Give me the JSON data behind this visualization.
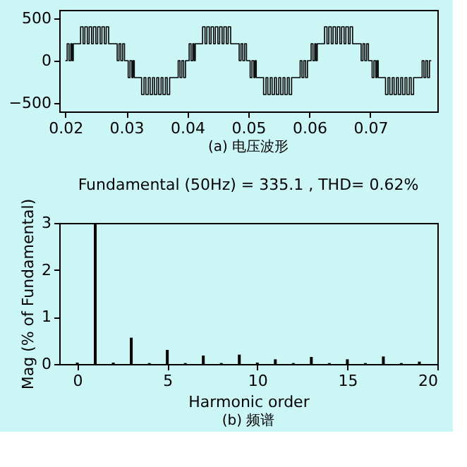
{
  "chart_data": [
    {
      "type": "step",
      "xlim": [
        0.019,
        0.081
      ],
      "xticks": [
        0.02,
        0.03,
        0.04,
        0.05,
        0.06,
        0.07
      ],
      "ylim": [
        -600,
        600
      ],
      "yticks": [
        -500,
        0,
        500
      ],
      "grid": false,
      "annotations": [
        "(a) 电压波形"
      ],
      "series": [
        {
          "color": "#000000",
          "x": [
            0.02,
            0.0203,
            0.0206,
            0.0209,
            0.0211,
            0.0213,
            0.0225,
            0.0229,
            0.0232,
            0.0236,
            0.0239,
            0.0243,
            0.0246,
            0.025,
            0.0253,
            0.0257,
            0.026,
            0.0264,
            0.0267,
            0.0271,
            0.0285,
            0.0288,
            0.0291,
            0.0294,
            0.0297,
            0.03,
            0.0303,
            0.0306,
            0.0309,
            0.0311,
            0.0313,
            0.0325,
            0.0329,
            0.0332,
            0.0336,
            0.0339,
            0.0343,
            0.0346,
            0.035,
            0.0353,
            0.0357,
            0.036,
            0.0364,
            0.0367,
            0.0371,
            0.0385,
            0.0388,
            0.0391,
            0.0394,
            0.0397,
            0.04,
            0.0403,
            0.0406,
            0.0409,
            0.0411,
            0.0413,
            0.0425,
            0.0429,
            0.0432,
            0.0436,
            0.0439,
            0.0443,
            0.0446,
            0.045,
            0.0453,
            0.0457,
            0.046,
            0.0464,
            0.0467,
            0.0471,
            0.0485,
            0.0488,
            0.0491,
            0.0494,
            0.0497,
            0.05,
            0.0503,
            0.0506,
            0.0509,
            0.0511,
            0.0513,
            0.0525,
            0.0529,
            0.0532,
            0.0536,
            0.0539,
            0.0543,
            0.0546,
            0.055,
            0.0553,
            0.0557,
            0.056,
            0.0564,
            0.0567,
            0.0571,
            0.0585,
            0.0588,
            0.0591,
            0.0594,
            0.0597,
            0.06,
            0.0603,
            0.0606,
            0.0609,
            0.0611,
            0.0613,
            0.0625,
            0.0629,
            0.0632,
            0.0636,
            0.0639,
            0.0643,
            0.0646,
            0.065,
            0.0653,
            0.0657,
            0.066,
            0.0664,
            0.0667,
            0.0671,
            0.0685,
            0.0688,
            0.0691,
            0.0694,
            0.0697,
            0.07,
            0.0703,
            0.0706,
            0.0709,
            0.0711,
            0.0713,
            0.0725,
            0.0729,
            0.0732,
            0.0736,
            0.0739,
            0.0743,
            0.0746,
            0.075,
            0.0753,
            0.0757,
            0.076,
            0.0764,
            0.0767,
            0.0771,
            0.0785,
            0.0788,
            0.0791,
            0.0794,
            0.0797,
            0.08
          ],
          "values": [
            0,
            200,
            0,
            200,
            0,
            200,
            400,
            200,
            400,
            200,
            400,
            200,
            400,
            200,
            400,
            200,
            400,
            200,
            400,
            200,
            0,
            200,
            0,
            200,
            0,
            0,
            -200,
            0,
            -200,
            0,
            -200,
            -400,
            -200,
            -400,
            -200,
            -400,
            -200,
            -400,
            -200,
            -400,
            -200,
            -400,
            -200,
            -400,
            -200,
            0,
            -200,
            0,
            -200,
            0,
            0,
            200,
            0,
            200,
            0,
            200,
            400,
            200,
            400,
            200,
            400,
            200,
            400,
            200,
            400,
            200,
            400,
            200,
            400,
            200,
            0,
            200,
            0,
            200,
            0,
            0,
            -200,
            0,
            -200,
            0,
            -200,
            -400,
            -200,
            -400,
            -200,
            -400,
            -200,
            -400,
            -200,
            -400,
            -200,
            -400,
            -200,
            -400,
            -200,
            0,
            -200,
            0,
            -200,
            0,
            0,
            200,
            0,
            200,
            0,
            200,
            400,
            200,
            400,
            200,
            400,
            200,
            400,
            200,
            400,
            200,
            400,
            200,
            400,
            200,
            0,
            200,
            0,
            200,
            0,
            0,
            -200,
            0,
            -200,
            0,
            -200,
            -400,
            -200,
            -400,
            -200,
            -400,
            -200,
            -400,
            -200,
            -400,
            -200,
            -400,
            -200,
            -400,
            -200,
            0,
            -200,
            0,
            -200,
            0,
            0
          ]
        }
      ]
    },
    {
      "type": "bar",
      "title": "Fundamental (50Hz) = 335.1 , THD= 0.62%",
      "xlabel": "Harmonic order",
      "ylabel": "Mag (% of Fundamental)",
      "xlim": [
        -1,
        20
      ],
      "xticks": [
        0,
        5,
        10,
        15,
        20
      ],
      "ylim": [
        0,
        3
      ],
      "yticks": [
        0,
        1,
        2,
        3
      ],
      "grid": false,
      "annotations": [
        "(b) 频谱"
      ],
      "x": [
        0,
        1,
        2,
        3,
        4,
        5,
        6,
        7,
        8,
        9,
        10,
        11,
        12,
        13,
        14,
        15,
        16,
        17,
        18,
        19
      ],
      "series": [
        {
          "color": "#000000",
          "values": [
            0.03,
            3,
            0.03,
            0.56,
            0.02,
            0.3,
            0.02,
            0.18,
            0.02,
            0.2,
            0.03,
            0.1,
            0.02,
            0.15,
            0.02,
            0.1,
            0.02,
            0.16,
            0.02,
            0.05
          ]
        }
      ]
    }
  ]
}
